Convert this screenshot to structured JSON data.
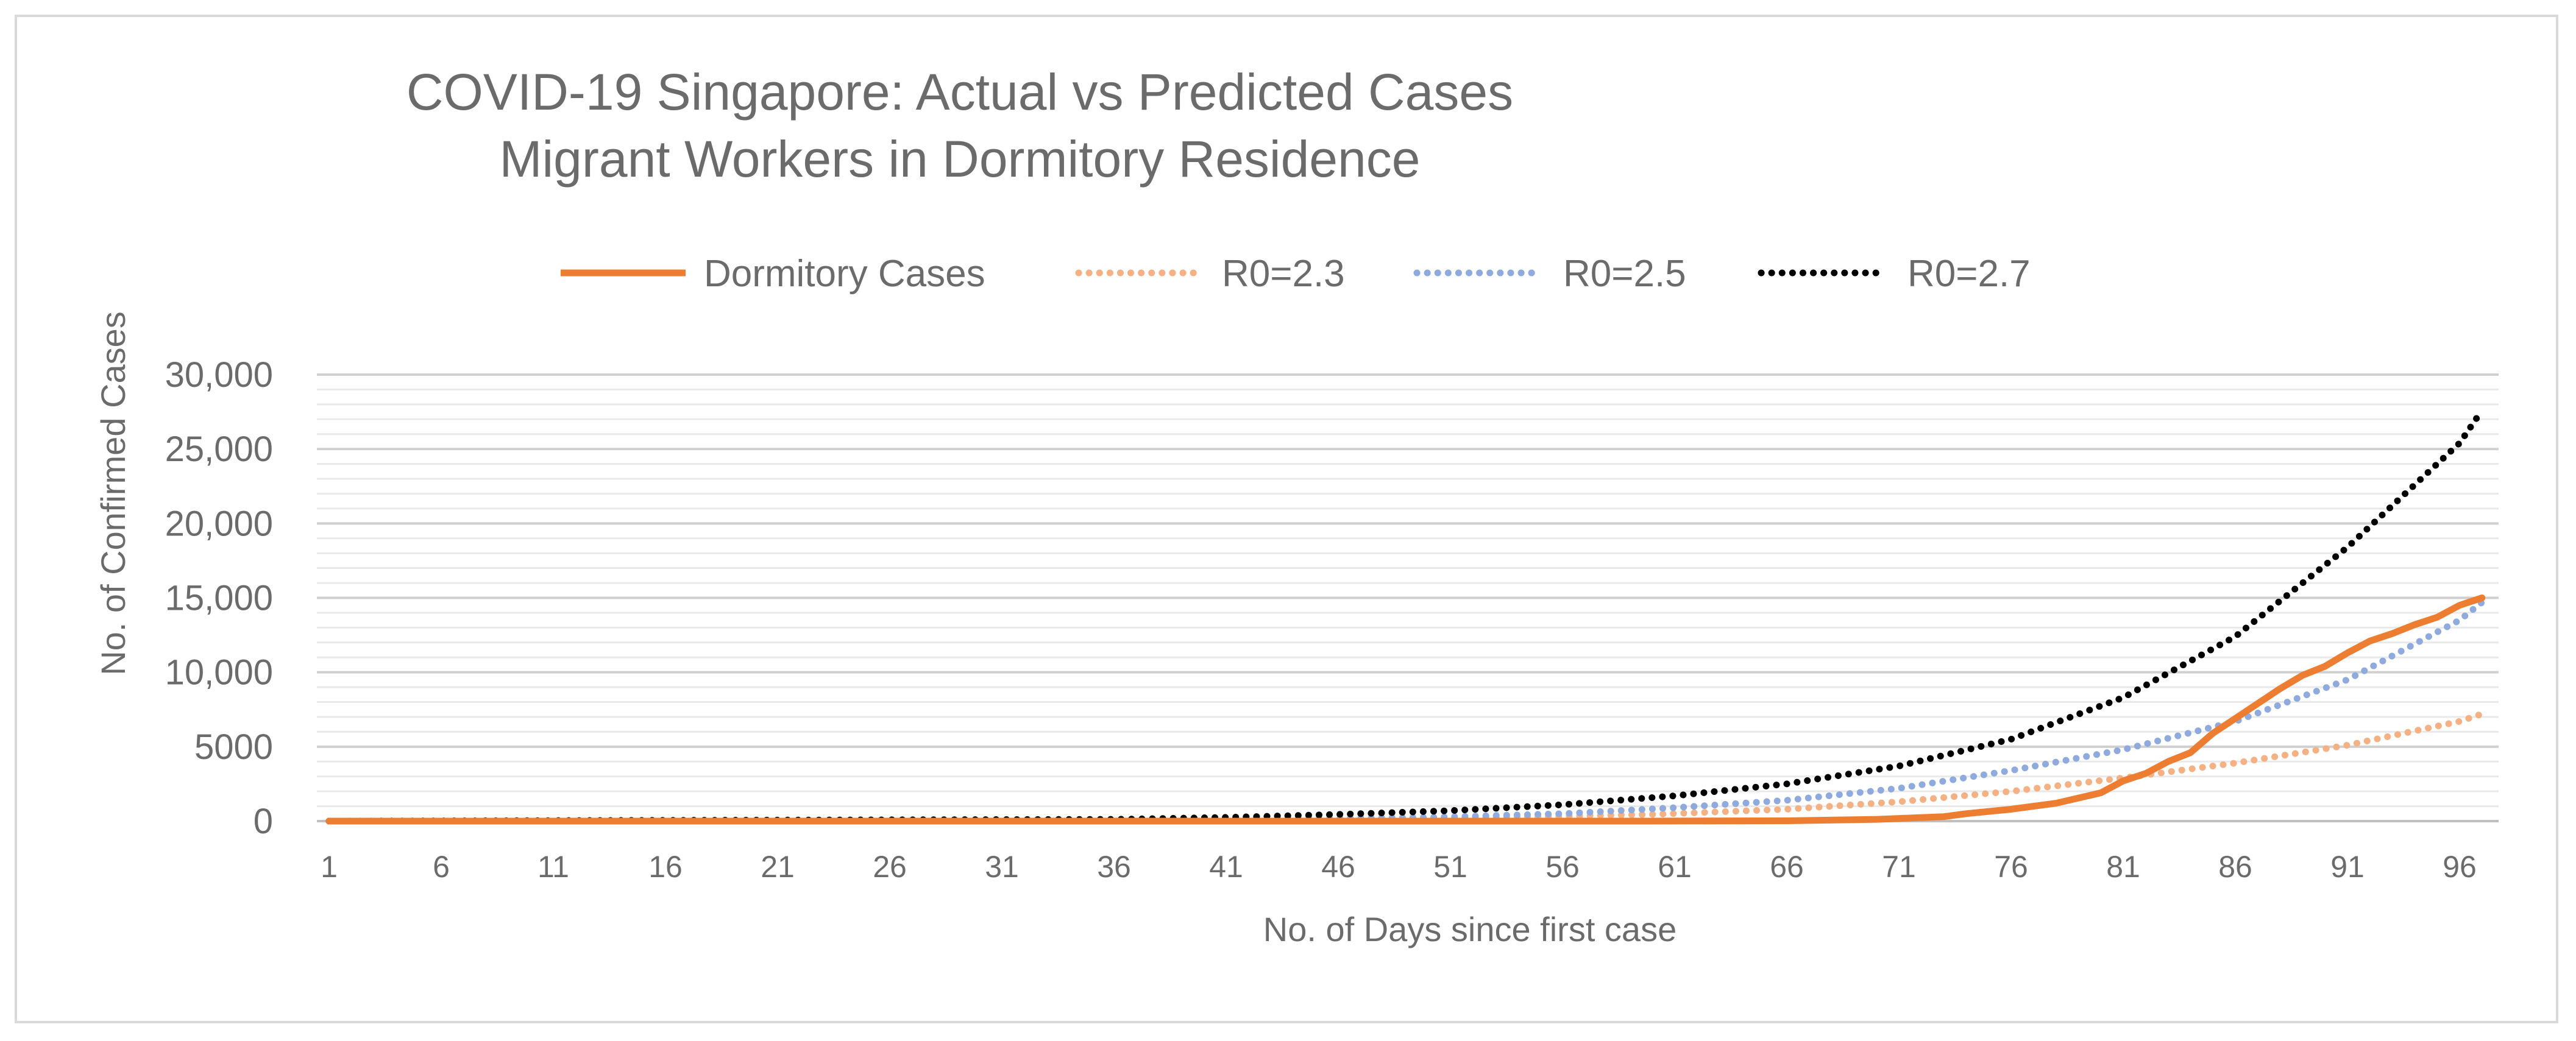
{
  "chart_data": {
    "type": "line",
    "title": "COVID-19 Singapore: Actual vs Predicted Cases",
    "subtitle": "Migrant Workers in Dormitory Residence",
    "xlabel": "No. of Days since first case",
    "ylabel": "No. of Confirmed Cases",
    "xlim": [
      1,
      98
    ],
    "ylim": [
      0,
      30000
    ],
    "x_ticks": [
      1,
      6,
      11,
      16,
      21,
      26,
      31,
      36,
      41,
      46,
      51,
      56,
      61,
      66,
      71,
      76,
      81,
      86,
      91,
      96
    ],
    "y_ticks": [
      {
        "value": 0,
        "label": "0"
      },
      {
        "value": 5000,
        "label": "5000"
      },
      {
        "value": 10000,
        "label": "10,000"
      },
      {
        "value": 15000,
        "label": "15,000"
      },
      {
        "value": 20000,
        "label": "20,000"
      },
      {
        "value": 25000,
        "label": "25,000"
      },
      {
        "value": 30000,
        "label": "30,000"
      }
    ],
    "minor_grid_step": 1000,
    "legend_position": "top-center",
    "series": [
      {
        "name": "Dormitory Cases",
        "style": "solid",
        "color": "#ed7d31",
        "points": [
          [
            1,
            0
          ],
          [
            60,
            0
          ],
          [
            66,
            20
          ],
          [
            70,
            120
          ],
          [
            73,
            300
          ],
          [
            74,
            500
          ],
          [
            76,
            800
          ],
          [
            78,
            1200
          ],
          [
            80,
            1900
          ],
          [
            81,
            2700
          ],
          [
            82,
            3200
          ],
          [
            83,
            4000
          ],
          [
            84,
            4600
          ],
          [
            85,
            5900
          ],
          [
            86,
            6900
          ],
          [
            87,
            7900
          ],
          [
            88,
            8900
          ],
          [
            89,
            9800
          ],
          [
            90,
            10400
          ],
          [
            91,
            11300
          ],
          [
            92,
            12100
          ],
          [
            93,
            12600
          ],
          [
            94,
            13200
          ],
          [
            95,
            13700
          ],
          [
            96,
            14500
          ],
          [
            97,
            15000
          ]
        ]
      },
      {
        "name": "R0=2.3",
        "style": "dotted",
        "color": "#f4b183",
        "points": [
          [
            1,
            0
          ],
          [
            40,
            40
          ],
          [
            50,
            150
          ],
          [
            60,
            450
          ],
          [
            66,
            800
          ],
          [
            71,
            1300
          ],
          [
            76,
            2000
          ],
          [
            81,
            2900
          ],
          [
            86,
            3900
          ],
          [
            91,
            5100
          ],
          [
            96,
            6700
          ],
          [
            97,
            7200
          ]
        ]
      },
      {
        "name": "R0=2.5",
        "style": "dotted",
        "color": "#8faadc",
        "points": [
          [
            1,
            0
          ],
          [
            40,
            60
          ],
          [
            50,
            250
          ],
          [
            56,
            500
          ],
          [
            61,
            900
          ],
          [
            66,
            1400
          ],
          [
            71,
            2200
          ],
          [
            76,
            3400
          ],
          [
            81,
            4800
          ],
          [
            86,
            6700
          ],
          [
            91,
            9500
          ],
          [
            96,
            13500
          ],
          [
            97,
            14700
          ]
        ]
      },
      {
        "name": "R0=2.7",
        "style": "dotted",
        "color": "#000000",
        "points": [
          [
            1,
            0
          ],
          [
            36,
            120
          ],
          [
            41,
            250
          ],
          [
            46,
            450
          ],
          [
            51,
            700
          ],
          [
            56,
            1100
          ],
          [
            61,
            1700
          ],
          [
            66,
            2500
          ],
          [
            71,
            3700
          ],
          [
            76,
            5500
          ],
          [
            81,
            8300
          ],
          [
            86,
            12400
          ],
          [
            91,
            18400
          ],
          [
            96,
            25400
          ],
          [
            97,
            27600
          ]
        ]
      }
    ]
  }
}
